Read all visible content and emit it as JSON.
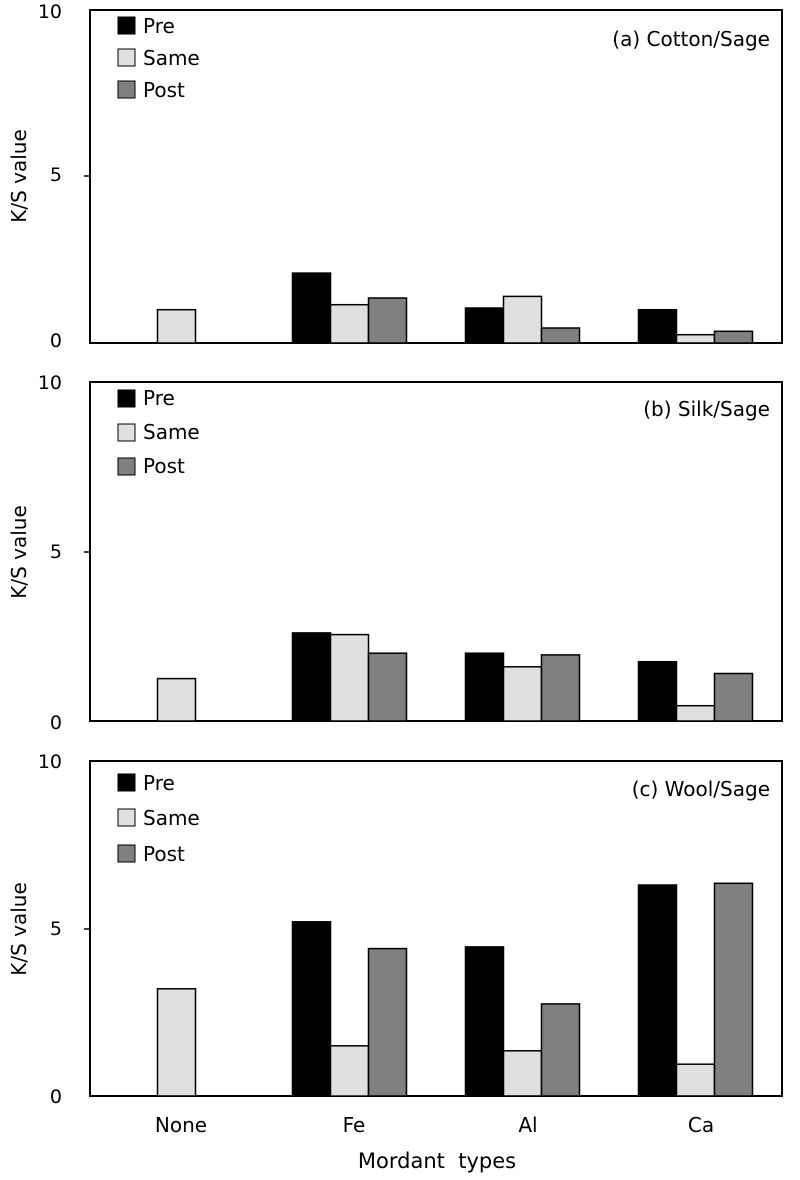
{
  "chart_data": [
    {
      "type": "bar",
      "title": "(a) Cotton/Sage",
      "ylabel": "K/S value",
      "xlabel": "",
      "ylim": [
        0,
        10
      ],
      "yticks": [
        "0",
        "5",
        "10"
      ],
      "categories": [
        "None",
        "Fe",
        "Al",
        "Ca"
      ],
      "series": [
        {
          "name": "Pre",
          "color": "#000000",
          "values": [
            null,
            2.1,
            1.05,
            1.0
          ]
        },
        {
          "name": "Same",
          "color": "#e0e0e0",
          "values": [
            1.0,
            1.15,
            1.4,
            0.25
          ]
        },
        {
          "name": "Post",
          "color": "#808080",
          "values": [
            null,
            1.35,
            0.45,
            0.35
          ]
        }
      ],
      "legend_position": "top-left"
    },
    {
      "type": "bar",
      "title": "(b) Silk/Sage",
      "ylabel": "K/S value",
      "xlabel": "",
      "ylim": [
        0,
        10
      ],
      "yticks": [
        "0",
        "5",
        "10"
      ],
      "categories": [
        "None",
        "Fe",
        "Al",
        "Ca"
      ],
      "series": [
        {
          "name": "Pre",
          "color": "#000000",
          "values": [
            null,
            2.6,
            2.0,
            1.75
          ]
        },
        {
          "name": "Same",
          "color": "#e0e0e0",
          "values": [
            1.25,
            2.55,
            1.6,
            0.45
          ]
        },
        {
          "name": "Post",
          "color": "#808080",
          "values": [
            null,
            2.0,
            1.95,
            1.4
          ]
        }
      ],
      "legend_position": "top-left"
    },
    {
      "type": "bar",
      "title": "(c) Wool/Sage",
      "ylabel": "K/S value",
      "xlabel": "Mordant  types",
      "ylim": [
        0,
        10
      ],
      "yticks": [
        "0",
        "5",
        "10"
      ],
      "categories": [
        "None",
        "Fe",
        "Al",
        "Ca"
      ],
      "series": [
        {
          "name": "Pre",
          "color": "#000000",
          "values": [
            null,
            5.2,
            4.45,
            6.3
          ]
        },
        {
          "name": "Same",
          "color": "#e0e0e0",
          "values": [
            3.2,
            1.5,
            1.35,
            0.95
          ]
        },
        {
          "name": "Post",
          "color": "#808080",
          "values": [
            null,
            4.4,
            2.75,
            6.35
          ]
        }
      ],
      "legend_position": "top-left"
    }
  ]
}
